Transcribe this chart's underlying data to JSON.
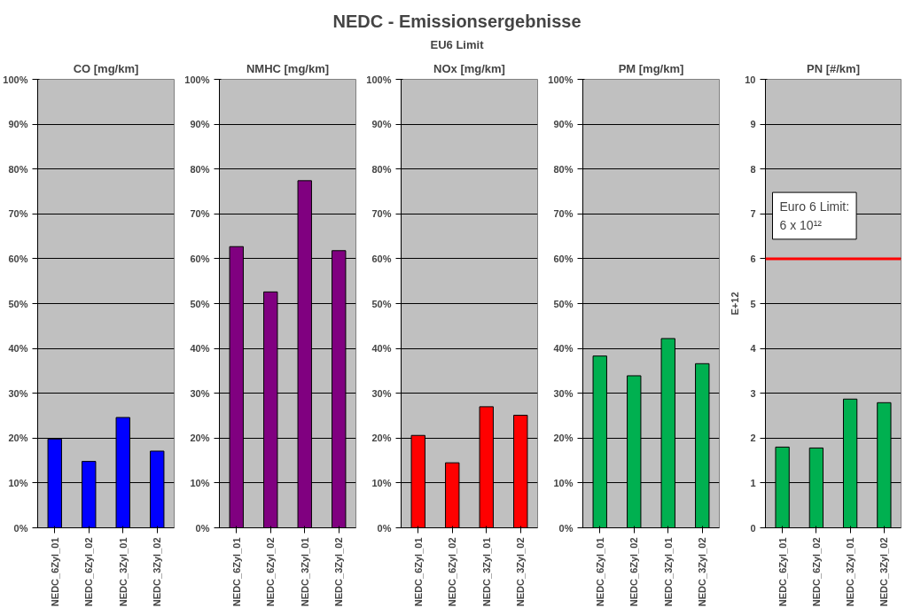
{
  "chart_data": [
    {
      "type": "other",
      "title": "NEDC - Emissionsergebnisse",
      "subtitle": "EU6 Limit"
    },
    {
      "type": "bar",
      "title": "CO [mg/km]",
      "categories": [
        "NEDC_6Zyl_01",
        "NEDC_6Zyl_02",
        "NEDC_3Zyl_01",
        "NEDC_3Zyl_02"
      ],
      "values": [
        19.8,
        14.8,
        24.6,
        17.1
      ],
      "color": "#0000ff",
      "ylim": [
        0,
        100
      ],
      "yticks": [
        {
          "value": 0,
          "label": "0%"
        },
        {
          "value": 10,
          "label": "10%"
        },
        {
          "value": 20,
          "label": "20%"
        },
        {
          "value": 30,
          "label": "30%"
        },
        {
          "value": 40,
          "label": "40%"
        },
        {
          "value": 50,
          "label": "50%"
        },
        {
          "value": 60,
          "label": "60%"
        },
        {
          "value": 70,
          "label": "70%"
        },
        {
          "value": 80,
          "label": "80%"
        },
        {
          "value": 90,
          "label": "90%"
        },
        {
          "value": 100,
          "label": "100%"
        }
      ],
      "grid": "y"
    },
    {
      "type": "bar",
      "title": "NMHC [mg/km]",
      "categories": [
        "NEDC_6Zyl_01",
        "NEDC_6Zyl_02",
        "NEDC_3Zyl_01",
        "NEDC_3Zyl_02"
      ],
      "values": [
        62.7,
        52.6,
        77.4,
        61.8
      ],
      "color": "#800080",
      "ylim": [
        0,
        100
      ],
      "yticks": [
        {
          "value": 0,
          "label": "0%"
        },
        {
          "value": 10,
          "label": "10%"
        },
        {
          "value": 20,
          "label": "20%"
        },
        {
          "value": 30,
          "label": "30%"
        },
        {
          "value": 40,
          "label": "40%"
        },
        {
          "value": 50,
          "label": "50%"
        },
        {
          "value": 60,
          "label": "60%"
        },
        {
          "value": 70,
          "label": "70%"
        },
        {
          "value": 80,
          "label": "80%"
        },
        {
          "value": 90,
          "label": "90%"
        },
        {
          "value": 100,
          "label": "100%"
        }
      ],
      "grid": "y"
    },
    {
      "type": "bar",
      "title": "NOx [mg/km]",
      "categories": [
        "NEDC_6Zyl_01",
        "NEDC_6Zyl_02",
        "NEDC_3Zyl_01",
        "NEDC_3Zyl_02"
      ],
      "values": [
        20.6,
        14.5,
        27.0,
        25.1
      ],
      "color": "#ff0000",
      "ylim": [
        0,
        100
      ],
      "yticks": [
        {
          "value": 0,
          "label": "0%"
        },
        {
          "value": 10,
          "label": "10%"
        },
        {
          "value": 20,
          "label": "20%"
        },
        {
          "value": 30,
          "label": "30%"
        },
        {
          "value": 40,
          "label": "40%"
        },
        {
          "value": 50,
          "label": "50%"
        },
        {
          "value": 60,
          "label": "60%"
        },
        {
          "value": 70,
          "label": "70%"
        },
        {
          "value": 80,
          "label": "80%"
        },
        {
          "value": 90,
          "label": "90%"
        },
        {
          "value": 100,
          "label": "100%"
        }
      ],
      "grid": "y"
    },
    {
      "type": "bar",
      "title": "PM [mg/km]",
      "categories": [
        "NEDC_6Zyl_01",
        "NEDC_6Zyl_02",
        "NEDC_3Zyl_01",
        "NEDC_3Zyl_02"
      ],
      "values": [
        38.3,
        33.9,
        42.2,
        36.6
      ],
      "color": "#00b050",
      "ylim": [
        0,
        100
      ],
      "yticks": [
        {
          "value": 0,
          "label": "0%"
        },
        {
          "value": 10,
          "label": "10%"
        },
        {
          "value": 20,
          "label": "20%"
        },
        {
          "value": 30,
          "label": "30%"
        },
        {
          "value": 40,
          "label": "40%"
        },
        {
          "value": 50,
          "label": "50%"
        },
        {
          "value": 60,
          "label": "60%"
        },
        {
          "value": 70,
          "label": "70%"
        },
        {
          "value": 80,
          "label": "80%"
        },
        {
          "value": 90,
          "label": "90%"
        },
        {
          "value": 100,
          "label": "100%"
        }
      ],
      "grid": "y"
    },
    {
      "type": "bar",
      "title": "PN [#/km]",
      "ylabel": "E+12",
      "categories": [
        "NEDC_6Zyl_01",
        "NEDC_6Zyl_02",
        "NEDC_3Zyl_01",
        "NEDC_3Zyl_02"
      ],
      "values": [
        1.8,
        1.78,
        2.87,
        2.79
      ],
      "color": "#00b050",
      "ylim": [
        0,
        10
      ],
      "yticks": [
        0,
        1,
        2,
        3,
        4,
        5,
        6,
        7,
        8,
        9,
        10
      ],
      "grid": "y",
      "ref_lines": [
        {
          "axis": "y",
          "value": 6,
          "label": "Euro 6 Limit:\n6 x 10¹²",
          "color": "#ff0000"
        }
      ]
    }
  ]
}
